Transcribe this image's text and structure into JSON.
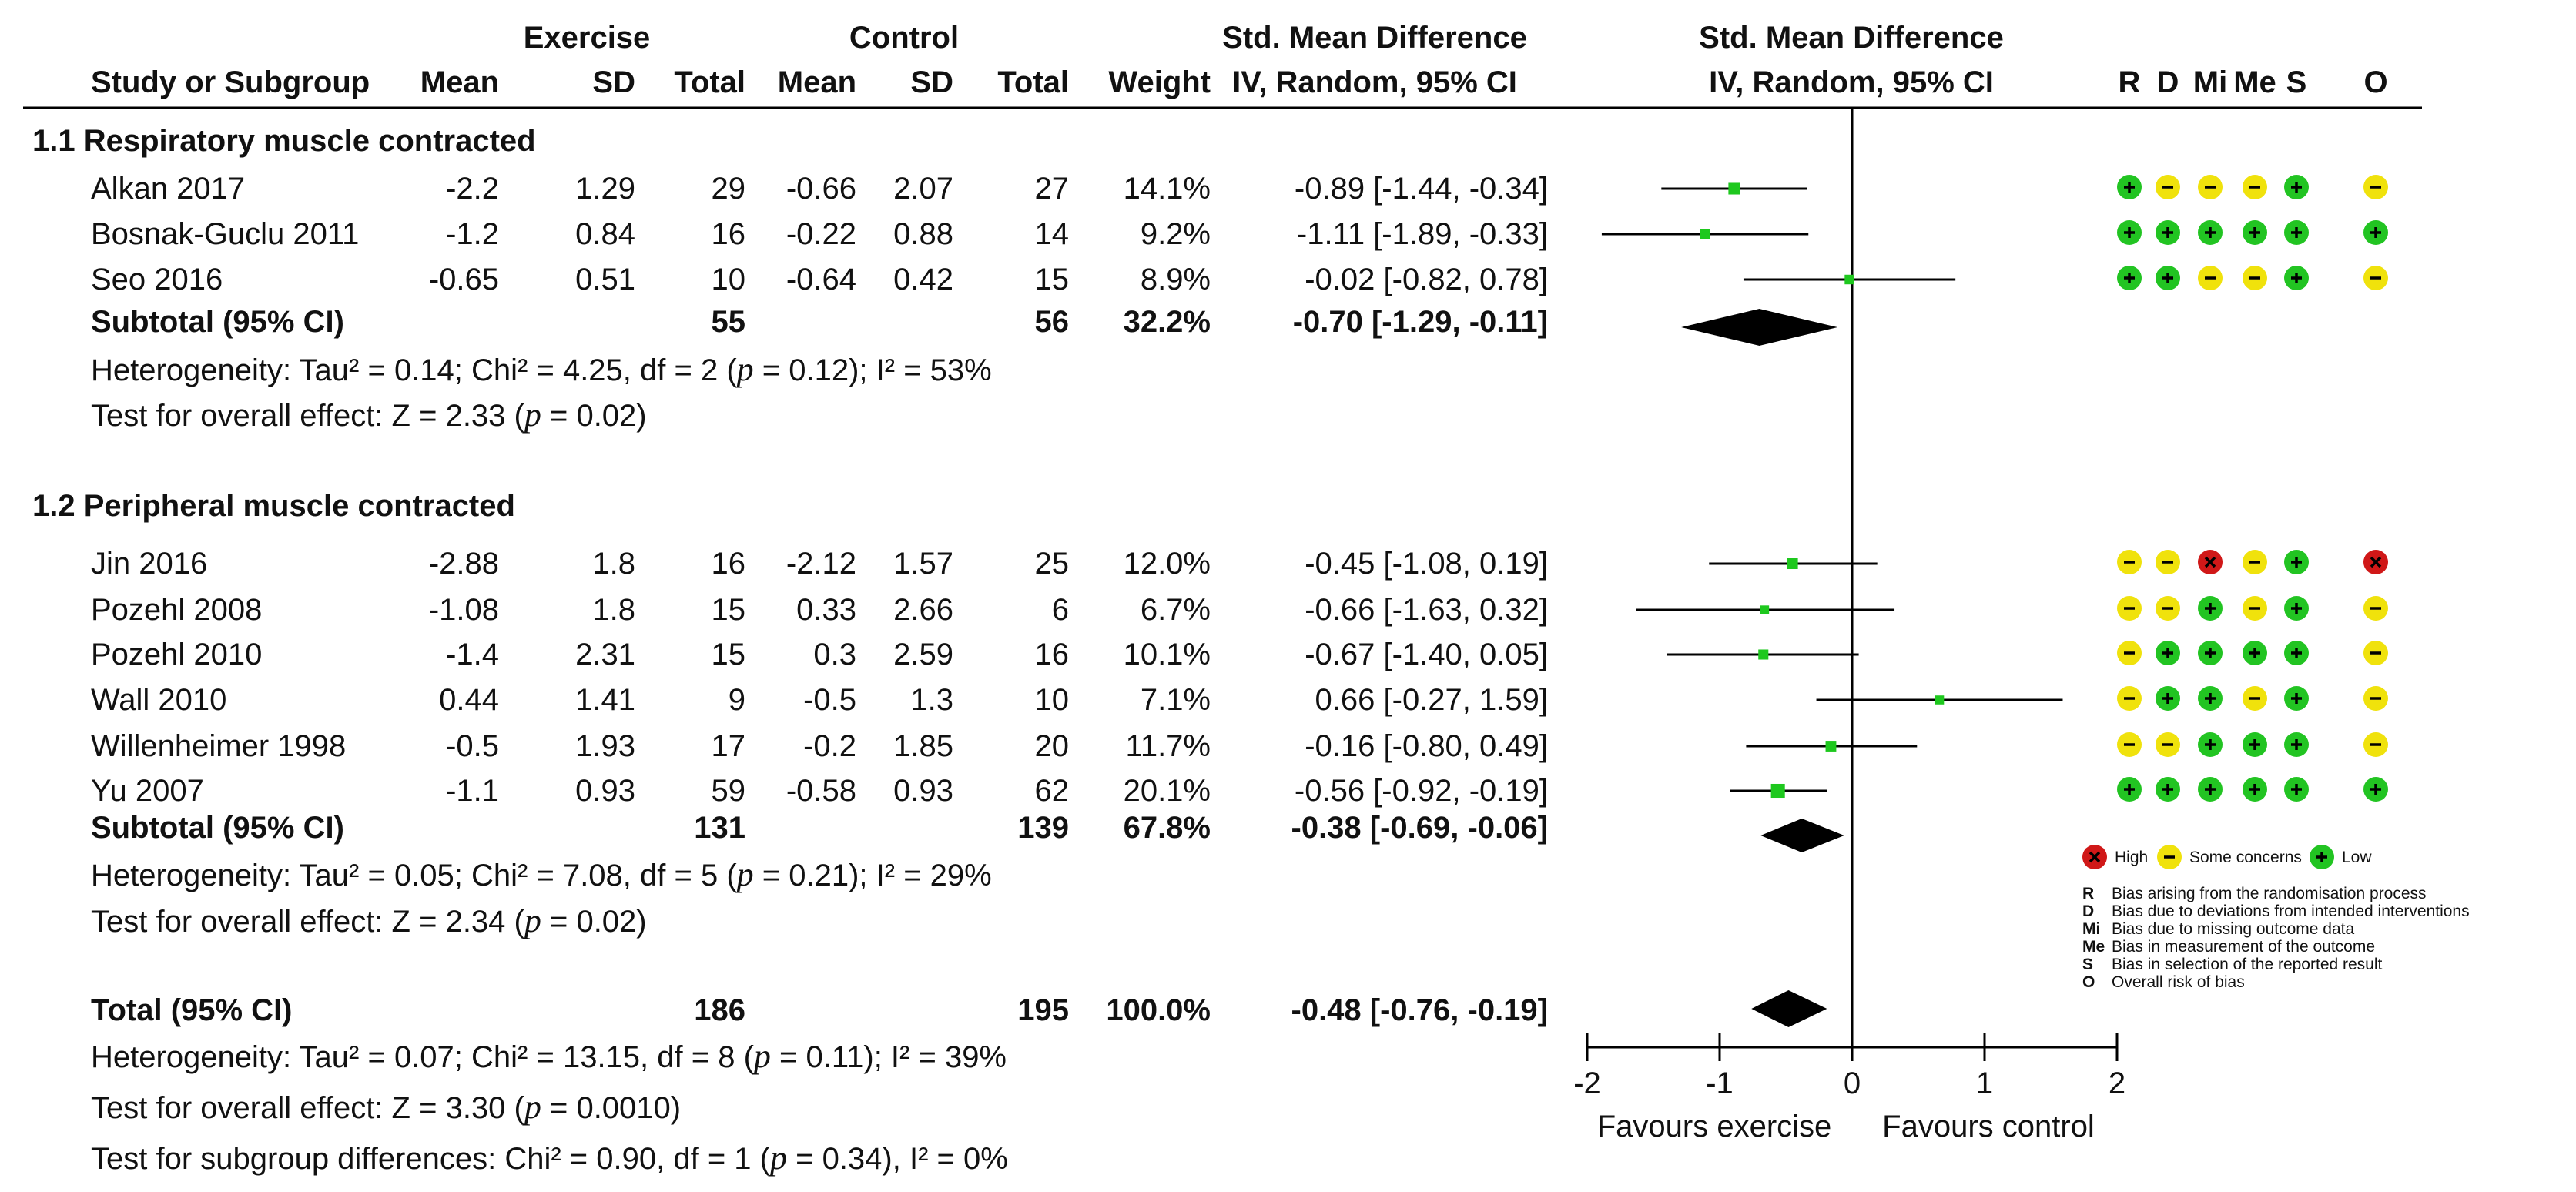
{
  "headers": {
    "study": "Study or Subgroup",
    "exercise_group": "Exercise",
    "control_group": "Control",
    "mean": "Mean",
    "sd": "SD",
    "total": "Total",
    "weight": "Weight",
    "smd_title": "Std. Mean Difference",
    "smd_method": "IV, Random, 95% CI",
    "rob": [
      "R",
      "D",
      "Mi",
      "Me",
      "S",
      "O"
    ]
  },
  "groups": [
    {
      "title": "1.1 Respiratory muscle contracted",
      "studies": [
        {
          "name": "Alkan 2017",
          "ex_mean": "-2.2",
          "ex_sd": "1.29",
          "ex_n": "29",
          "ct_mean": "-0.66",
          "ct_sd": "2.07",
          "ct_n": "27",
          "weight": "14.1%",
          "ci_text": "-0.89 [-1.44, -0.34]",
          "smd": -0.89,
          "lo": -1.44,
          "hi": -0.34,
          "w": 14.1,
          "rob": [
            "low",
            "some",
            "some",
            "some",
            "low",
            "some"
          ]
        },
        {
          "name": "Bosnak-Guclu 2011",
          "ex_mean": "-1.2",
          "ex_sd": "0.84",
          "ex_n": "16",
          "ct_mean": "-0.22",
          "ct_sd": "0.88",
          "ct_n": "14",
          "weight": "9.2%",
          "ci_text": "-1.11 [-1.89, -0.33]",
          "smd": -1.11,
          "lo": -1.89,
          "hi": -0.33,
          "w": 9.2,
          "rob": [
            "low",
            "low",
            "low",
            "low",
            "low",
            "low"
          ]
        },
        {
          "name": "Seo 2016",
          "ex_mean": "-0.65",
          "ex_sd": "0.51",
          "ex_n": "10",
          "ct_mean": "-0.64",
          "ct_sd": "0.42",
          "ct_n": "15",
          "weight": "8.9%",
          "ci_text": "-0.02 [-0.82, 0.78]",
          "smd": -0.02,
          "lo": -0.82,
          "hi": 0.78,
          "w": 8.9,
          "rob": [
            "low",
            "low",
            "some",
            "some",
            "low",
            "some"
          ]
        }
      ],
      "subtotal": {
        "label": "Subtotal (95% CI)",
        "ex_n": "55",
        "ct_n": "56",
        "weight": "32.2%",
        "ci_text": "-0.70 [-1.29, -0.11]",
        "smd": -0.7,
        "lo": -1.29,
        "hi": -0.11
      },
      "heterogeneity": [
        "Heterogeneity: Tau² = 0.14; Chi² = 4.25, df = 2 (",
        "p",
        " = 0.12); I² = 53%"
      ],
      "overall": [
        "Test for overall effect: Z = 2.33 (",
        "p",
        " = 0.02)"
      ]
    },
    {
      "title": "1.2 Peripheral muscle contracted",
      "studies": [
        {
          "name": "Jin 2016",
          "ex_mean": "-2.88",
          "ex_sd": "1.8",
          "ex_n": "16",
          "ct_mean": "-2.12",
          "ct_sd": "1.57",
          "ct_n": "25",
          "weight": "12.0%",
          "ci_text": "-0.45 [-1.08, 0.19]",
          "smd": -0.45,
          "lo": -1.08,
          "hi": 0.19,
          "w": 12.0,
          "rob": [
            "some",
            "some",
            "high",
            "some",
            "low",
            "high"
          ]
        },
        {
          "name": "Pozehl 2008",
          "ex_mean": "-1.08",
          "ex_sd": "1.8",
          "ex_n": "15",
          "ct_mean": "0.33",
          "ct_sd": "2.66",
          "ct_n": "6",
          "weight": "6.7%",
          "ci_text": "-0.66 [-1.63, 0.32]",
          "smd": -0.66,
          "lo": -1.63,
          "hi": 0.32,
          "w": 6.7,
          "rob": [
            "some",
            "some",
            "low",
            "some",
            "low",
            "some"
          ]
        },
        {
          "name": "Pozehl 2010",
          "ex_mean": "-1.4",
          "ex_sd": "2.31",
          "ex_n": "15",
          "ct_mean": "0.3",
          "ct_sd": "2.59",
          "ct_n": "16",
          "weight": "10.1%",
          "ci_text": "-0.67 [-1.40, 0.05]",
          "smd": -0.67,
          "lo": -1.4,
          "hi": 0.05,
          "w": 10.1,
          "rob": [
            "some",
            "low",
            "low",
            "low",
            "low",
            "some"
          ]
        },
        {
          "name": "Wall 2010",
          "ex_mean": "0.44",
          "ex_sd": "1.41",
          "ex_n": "9",
          "ct_mean": "-0.5",
          "ct_sd": "1.3",
          "ct_n": "10",
          "weight": "7.1%",
          "ci_text": "0.66 [-0.27, 1.59]",
          "smd": 0.66,
          "lo": -0.27,
          "hi": 1.59,
          "w": 7.1,
          "rob": [
            "some",
            "low",
            "low",
            "some",
            "low",
            "some"
          ]
        },
        {
          "name": "Willenheimer 1998",
          "ex_mean": "-0.5",
          "ex_sd": "1.93",
          "ex_n": "17",
          "ct_mean": "-0.2",
          "ct_sd": "1.85",
          "ct_n": "20",
          "weight": "11.7%",
          "ci_text": "-0.16 [-0.80, 0.49]",
          "smd": -0.16,
          "lo": -0.8,
          "hi": 0.49,
          "w": 11.7,
          "rob": [
            "some",
            "some",
            "low",
            "low",
            "low",
            "some"
          ]
        },
        {
          "name": "Yu 2007",
          "ex_mean": "-1.1",
          "ex_sd": "0.93",
          "ex_n": "59",
          "ct_mean": "-0.58",
          "ct_sd": "0.93",
          "ct_n": "62",
          "weight": "20.1%",
          "ci_text": "-0.56 [-0.92, -0.19]",
          "smd": -0.56,
          "lo": -0.92,
          "hi": -0.19,
          "w": 20.1,
          "rob": [
            "low",
            "low",
            "low",
            "low",
            "low",
            "low"
          ]
        }
      ],
      "subtotal": {
        "label": "Subtotal (95% CI)",
        "ex_n": "131",
        "ct_n": "139",
        "weight": "67.8%",
        "ci_text": "-0.38 [-0.69, -0.06]",
        "smd": -0.38,
        "lo": -0.69,
        "hi": -0.06
      },
      "heterogeneity": [
        "Heterogeneity: Tau² = 0.05; Chi² = 7.08, df = 5 (",
        "p",
        " = 0.21); I² = 29%"
      ],
      "overall": [
        "Test for overall effect: Z = 2.34 (",
        "p",
        " = 0.02)"
      ]
    }
  ],
  "total": {
    "label": "Total (95% CI)",
    "ex_n": "186",
    "ct_n": "195",
    "weight": "100.0%",
    "ci_text": "-0.48 [-0.76, -0.19]",
    "smd": -0.48,
    "lo": -0.76,
    "hi": -0.19
  },
  "total_notes": [
    [
      "Heterogeneity: Tau² = 0.07; Chi² = 13.15, df = 8 (",
      "p",
      " = 0.11); I² = 39%"
    ],
    [
      "Test for overall effect: Z = 3.30 (",
      "p",
      " = 0.0010)"
    ],
    [
      "Test for subgroup differences: Chi² = 0.90, df = 1 (",
      "p",
      " = 0.34), I² = 0%"
    ]
  ],
  "axis": {
    "ticks": [
      -2,
      -1,
      0,
      1,
      2
    ],
    "left_label": "Favours exercise",
    "right_label": "Favours control"
  },
  "legend": {
    "levels": [
      {
        "key": "high",
        "label": "High"
      },
      {
        "key": "some",
        "label": "Some concerns"
      },
      {
        "key": "low",
        "label": "Low"
      }
    ],
    "items": [
      {
        "code": "R",
        "text": "Bias arising from the randomisation process"
      },
      {
        "code": "D",
        "text": "Bias due to deviations from intended interventions"
      },
      {
        "code": "Mi",
        "text": "Bias due to missing outcome data"
      },
      {
        "code": "Me",
        "text": "Bias in measurement of the outcome"
      },
      {
        "code": "S",
        "text": "Bias in selection of the reported result"
      },
      {
        "code": "O",
        "text": "Overall risk of bias"
      }
    ]
  },
  "colors": {
    "square": "#1ec81e",
    "low": "#22c422",
    "some": "#f0e20c",
    "high": "#d01818",
    "diamond": "#000000"
  },
  "chart_data": {
    "type": "forest",
    "title": "Std. Mean Difference IV, Random, 95% CI",
    "xlabel": "Favours exercise | Favours control",
    "xlim": [
      -2,
      2
    ],
    "series": [
      {
        "name": "1.1 Respiratory muscle contracted",
        "studies": [
          "Alkan 2017",
          "Bosnak-Guclu 2011",
          "Seo 2016"
        ],
        "smd": [
          -0.89,
          -1.11,
          -0.02
        ],
        "ci_low": [
          -1.44,
          -1.89,
          -0.82
        ],
        "ci_high": [
          -0.34,
          -0.33,
          0.78
        ],
        "weight": [
          14.1,
          9.2,
          8.9
        ],
        "subtotal": [
          -0.7,
          -1.29,
          -0.11
        ]
      },
      {
        "name": "1.2 Peripheral muscle contracted",
        "studies": [
          "Jin 2016",
          "Pozehl 2008",
          "Pozehl 2010",
          "Wall 2010",
          "Willenheimer 1998",
          "Yu 2007"
        ],
        "smd": [
          -0.45,
          -0.66,
          -0.67,
          0.66,
          -0.16,
          -0.56
        ],
        "ci_low": [
          -1.08,
          -1.63,
          -1.4,
          -0.27,
          -0.8,
          -0.92
        ],
        "ci_high": [
          0.19,
          0.32,
          0.05,
          1.59,
          0.49,
          -0.19
        ],
        "weight": [
          12.0,
          6.7,
          10.1,
          7.1,
          11.7,
          20.1
        ],
        "subtotal": [
          -0.38,
          -0.69,
          -0.06
        ]
      }
    ],
    "overall": [
      -0.48,
      -0.76,
      -0.19
    ]
  }
}
